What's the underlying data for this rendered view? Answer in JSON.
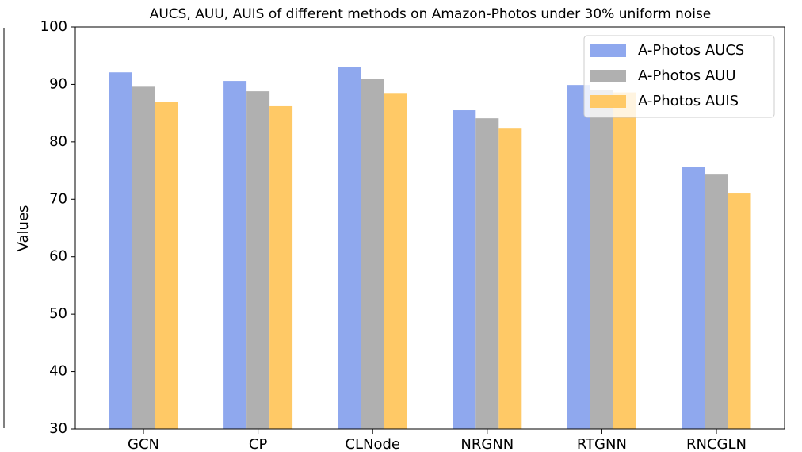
{
  "chart_data": {
    "type": "bar",
    "title": "AUCS, AUU, AUIS of different methods on Amazon-Photos under 30% uniform noise",
    "ylabel": "Values",
    "categories": [
      "GCN",
      "CP",
      "CLNode",
      "NRGNN",
      "RTGNN",
      "RNCGLN"
    ],
    "series": [
      {
        "name": "A-Photos AUCS",
        "color": "#8fa8ee",
        "values": [
          92.1,
          90.6,
          93.0,
          85.5,
          89.9,
          75.6
        ]
      },
      {
        "name": "A-Photos AUU",
        "color": "#b0b0b0",
        "values": [
          89.6,
          88.8,
          91.0,
          84.1,
          89.0,
          74.3
        ]
      },
      {
        "name": "A-Photos AUIS",
        "color": "#ffc966",
        "values": [
          86.9,
          86.2,
          88.5,
          82.3,
          88.6,
          71.0
        ]
      }
    ],
    "ylim": [
      30,
      100
    ],
    "yticks": [
      30,
      40,
      50,
      60,
      70,
      80,
      90,
      100
    ],
    "legend": "upper right"
  }
}
